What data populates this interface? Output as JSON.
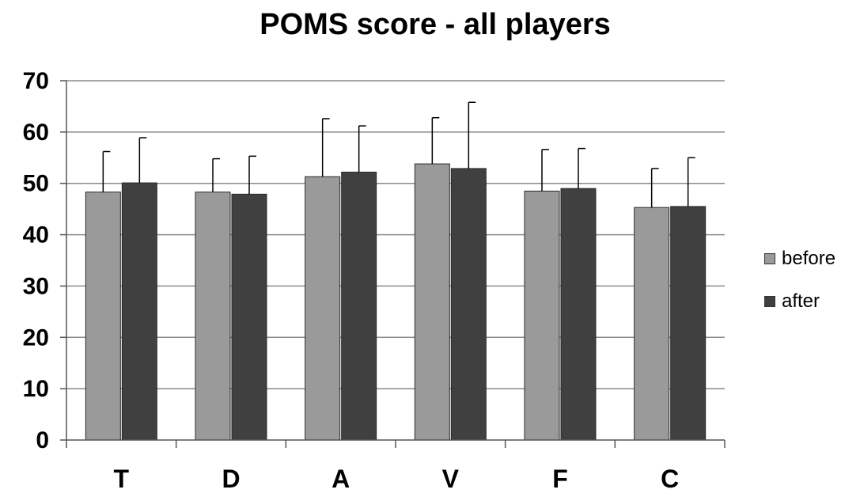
{
  "chart_data": {
    "type": "bar",
    "title": "POMS score - all players",
    "categories": [
      "T",
      "D",
      "A",
      "V",
      "F",
      "C"
    ],
    "series": [
      {
        "name": "before",
        "color": "#9a9a9a",
        "values": [
          48.3,
          48.3,
          51.3,
          53.8,
          48.5,
          45.3
        ],
        "error": [
          7.9,
          6.5,
          11.3,
          9.0,
          8.1,
          7.6
        ]
      },
      {
        "name": "after",
        "color": "#404040",
        "values": [
          50.1,
          47.9,
          52.2,
          52.9,
          49.0,
          45.5
        ],
        "error": [
          8.8,
          7.4,
          9.0,
          12.9,
          7.8,
          9.5
        ]
      }
    ],
    "ylim": [
      0,
      70
    ],
    "yticks": [
      0,
      10,
      20,
      30,
      40,
      50,
      60,
      70
    ],
    "grid": true,
    "legend": "right",
    "xlabel": "",
    "ylabel": ""
  }
}
